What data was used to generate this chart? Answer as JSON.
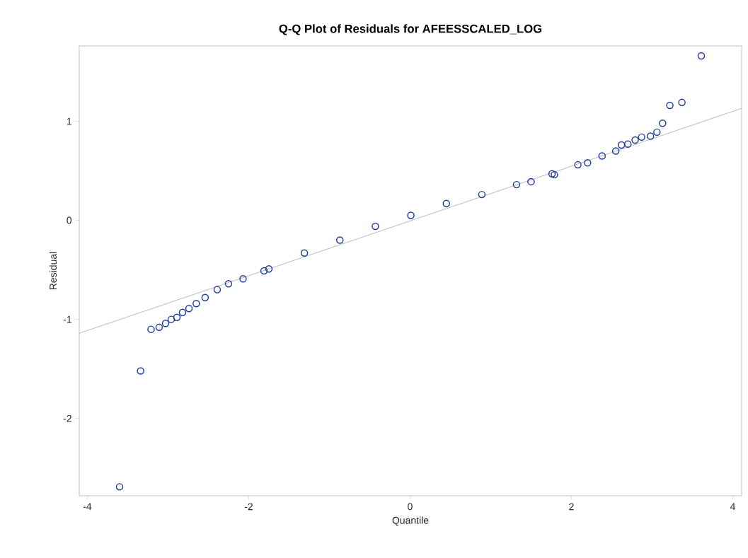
{
  "chart_data": {
    "type": "scatter",
    "title": "Q-Q Plot of Residuals for AFEESSCALED_LOG",
    "xlabel": "Quantile",
    "ylabel": "Residual",
    "xlim": [
      -4.1,
      4.11
    ],
    "ylim": [
      -2.78,
      1.76
    ],
    "xticks": [
      -4,
      -2,
      0,
      2,
      4
    ],
    "yticks": [
      -2,
      -1,
      0,
      1
    ],
    "marker": "circle",
    "series": [
      {
        "color": "#1f3c98",
        "x": [
          -3.6,
          -3.34,
          -3.21,
          -3.11,
          -3.03,
          -2.96,
          -2.89,
          -2.82,
          -2.74,
          -2.65,
          -2.54,
          -2.39,
          -2.25,
          -2.07,
          -1.81,
          -1.75,
          -1.31,
          -0.87,
          -0.43,
          0.01,
          0.45,
          0.89,
          1.32,
          1.5,
          1.76,
          1.79,
          2.08,
          2.2,
          2.38,
          2.55,
          2.62,
          2.7,
          2.79,
          2.87,
          2.98,
          3.06,
          3.13,
          3.22,
          3.37,
          3.61
        ],
        "values": [
          -2.69,
          -1.52,
          -1.1,
          -1.08,
          -1.04,
          -1.0,
          -0.98,
          -0.93,
          -0.89,
          -0.84,
          -0.78,
          -0.7,
          -0.64,
          -0.59,
          -0.51,
          -0.49,
          -0.33,
          -0.2,
          -0.06,
          0.05,
          0.17,
          0.26,
          0.36,
          0.39,
          0.47,
          0.46,
          0.56,
          0.58,
          0.65,
          0.7,
          0.76,
          0.77,
          0.81,
          0.84,
          0.85,
          0.89,
          0.98,
          1.16,
          1.19,
          1.66
        ]
      },
      {
        "type": "line",
        "marker": "none",
        "color": "#a8a8a8",
        "x": [
          -4.1,
          4.11
        ],
        "values": [
          -1.14,
          1.13
        ]
      }
    ]
  }
}
